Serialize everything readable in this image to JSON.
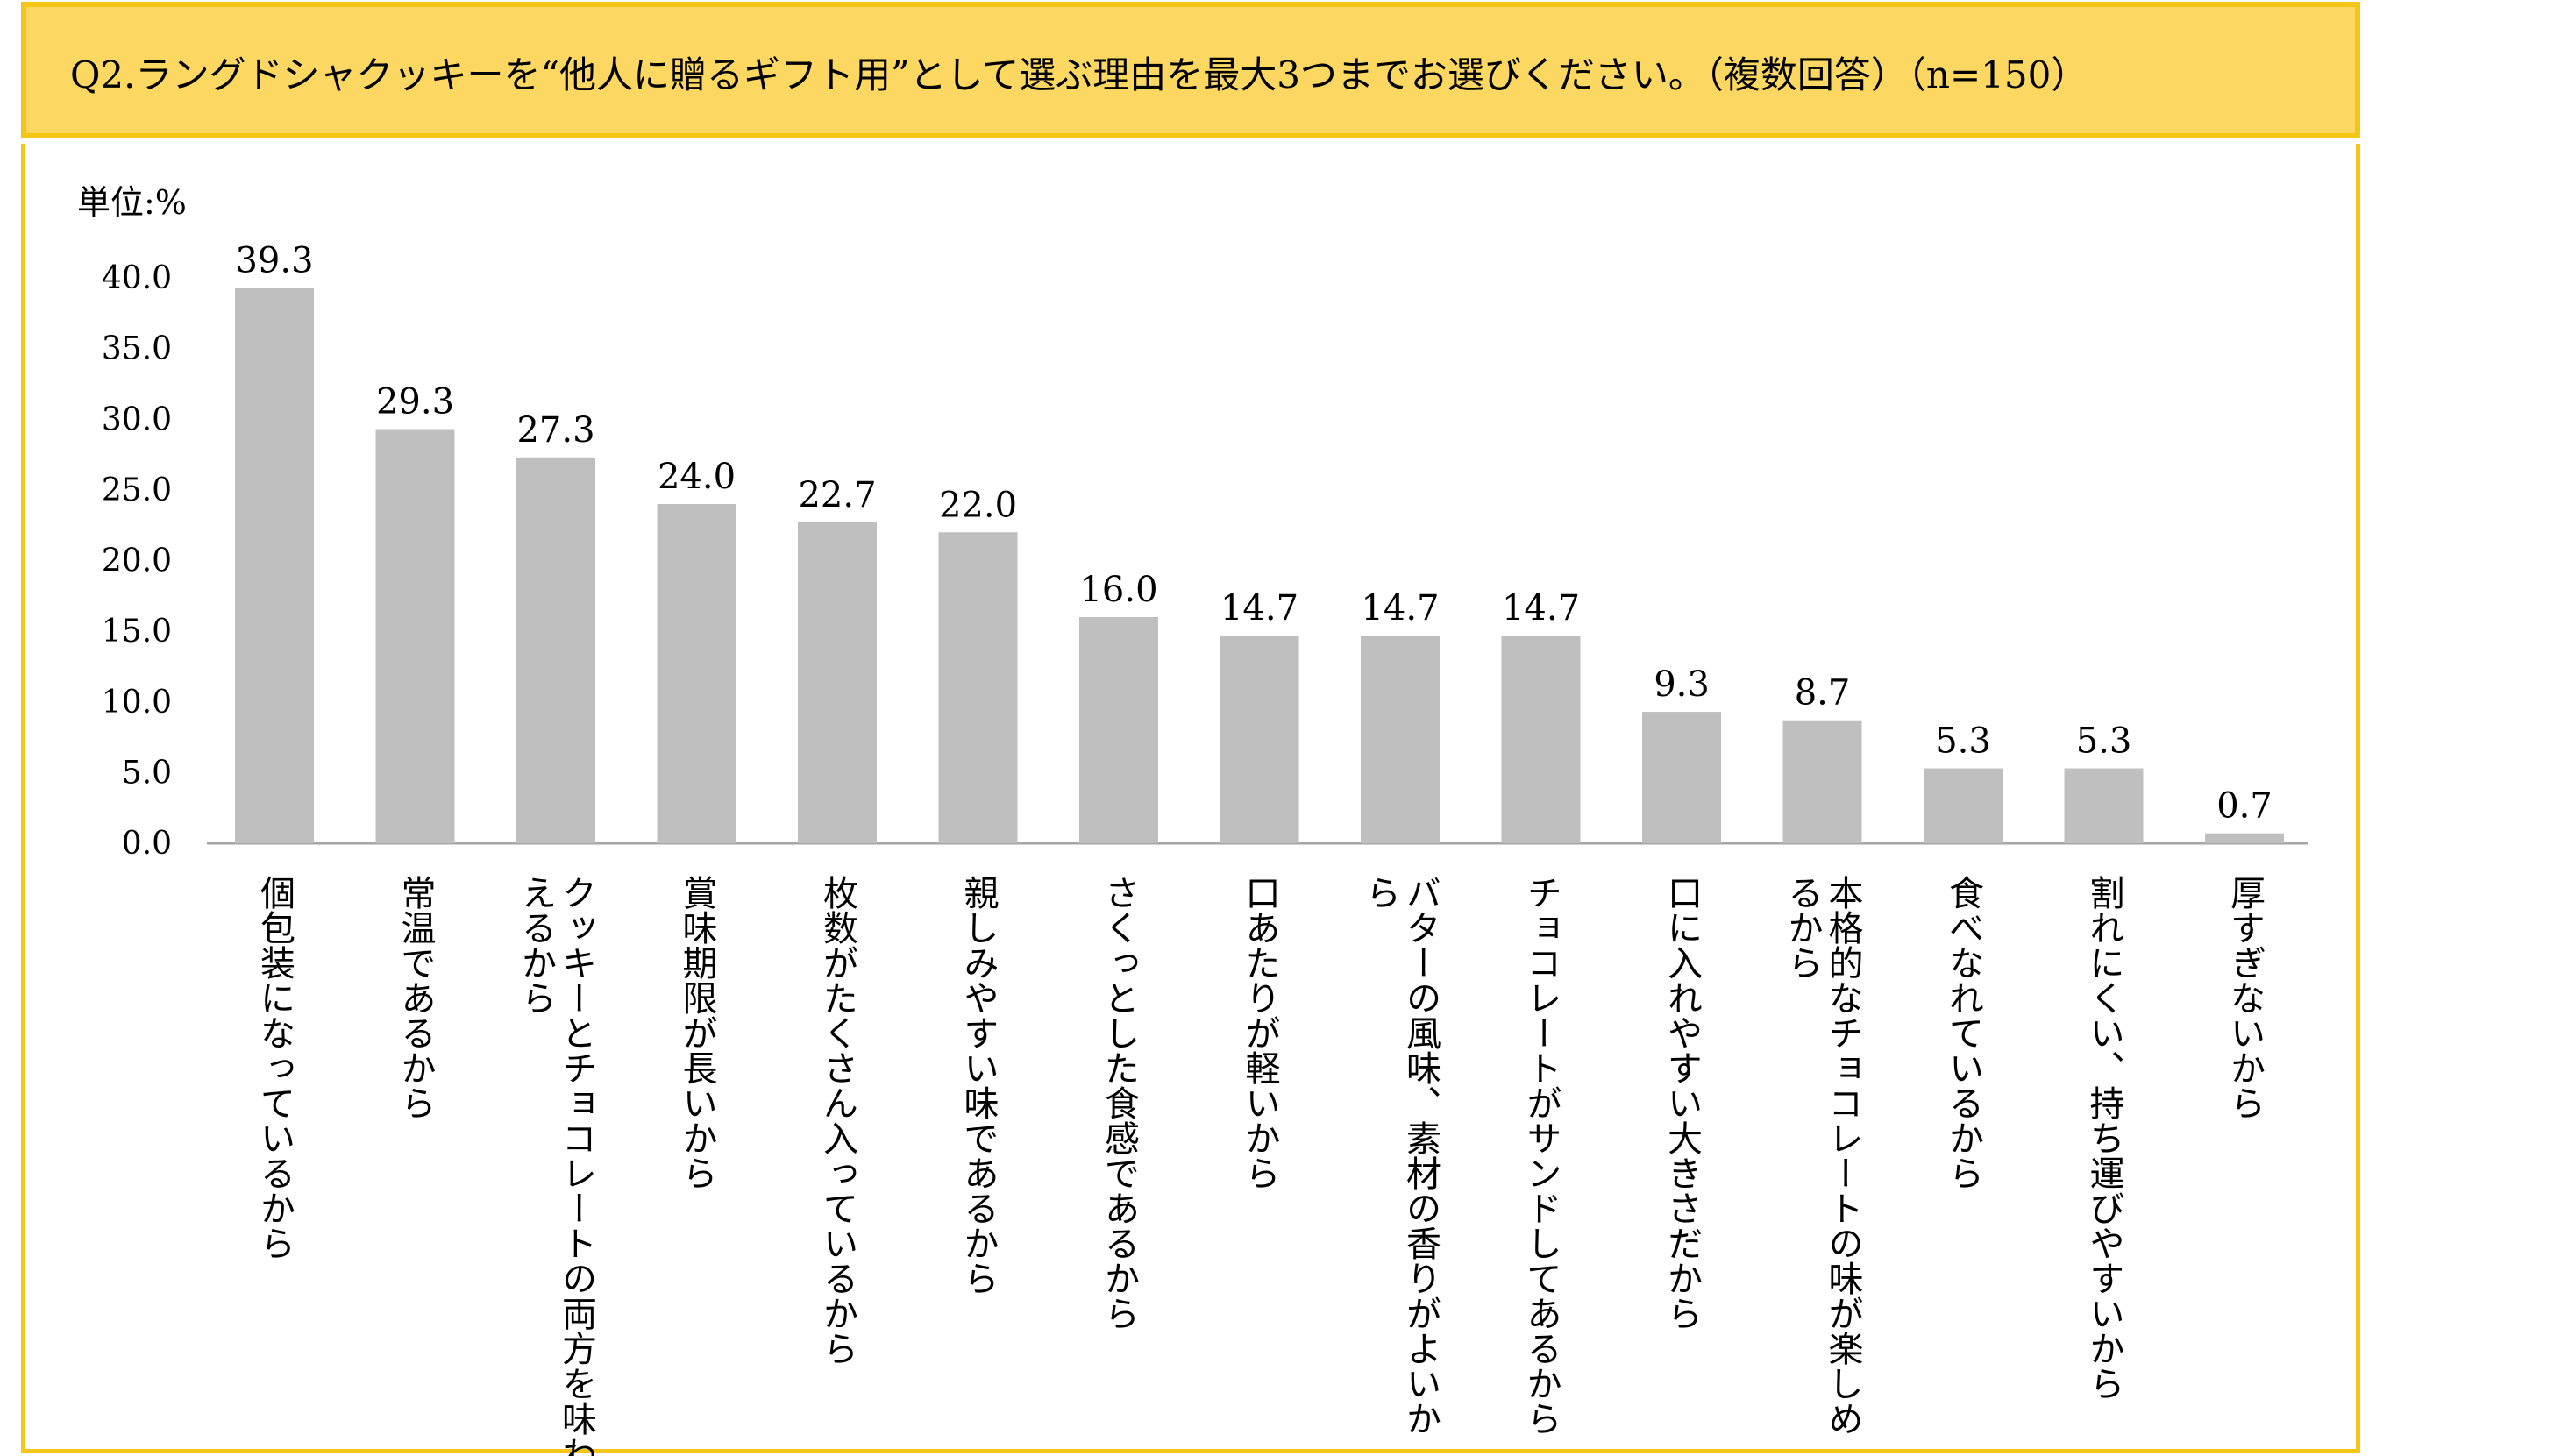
{
  "chart_data": {
    "type": "bar",
    "title": "Q2.ラングドシャクッキーを“他人に贈るギフト用”として選ぶ理由を最大3つまでお選びください。（複数回答）（n=150）",
    "unit_label": "単位:%",
    "ylim": [
      0,
      40
    ],
    "yticks": [
      "0.0",
      "5.0",
      "10.0",
      "15.0",
      "20.0",
      "25.0",
      "30.0",
      "35.0",
      "40.0"
    ],
    "categories": [
      [
        "個包装になっているから"
      ],
      [
        "常温であるから"
      ],
      [
        "クッキーとチョコレートの両方を味わ",
        "えるから"
      ],
      [
        "賞味期限が長いから"
      ],
      [
        "枚数がたくさん入っているから"
      ],
      [
        "親しみやすい味であるから"
      ],
      [
        "さくっとした食感であるから"
      ],
      [
        "口あたりが軽いから"
      ],
      [
        "バターの風味、素材の香りがよいか",
        "ら"
      ],
      [
        "チョコレートがサンドしてあるから"
      ],
      [
        "口に入れやすい大きさだから"
      ],
      [
        "本格的なチョコレートの味が楽しめ",
        "るから"
      ],
      [
        "食べなれているから"
      ],
      [
        "割れにくい、持ち運びやすいから"
      ],
      [
        "厚すぎないから"
      ]
    ],
    "values": [
      39.3,
      29.3,
      27.3,
      24.0,
      22.7,
      22.0,
      16.0,
      14.7,
      14.7,
      14.7,
      9.3,
      8.7,
      5.3,
      5.3,
      0.7
    ],
    "value_labels": [
      "39.3",
      "29.3",
      "27.3",
      "24.0",
      "22.7",
      "22.0",
      "16.0",
      "14.7",
      "14.7",
      "14.7",
      "9.3",
      "8.7",
      "5.3",
      "5.3",
      "0.7"
    ],
    "bar_color": "#bfbfbf",
    "axis_color": "#a6a6a6"
  }
}
